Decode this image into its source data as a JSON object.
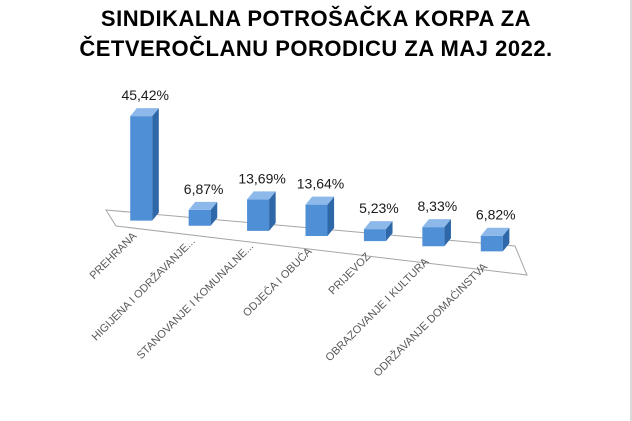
{
  "title_lines": [
    "SINDIKALNA POTROŠAČKA KORPA ZA",
    "ČETVEROČLANU PORODICU ZA MAJ 2022."
  ],
  "colors": {
    "bar_front": "#4f8fd6",
    "bar_side": "#2f68a8",
    "bar_top": "#8db9ea",
    "floor": "#ffffff",
    "floor_edge": "#a6a6a6"
  },
  "chart_data": {
    "type": "bar",
    "title": "SINDIKALNA POTROŠAČKA KORPA ZA ČETVEROČLANU PORODICU ZA MAJ 2022.",
    "categories": [
      "PREHRANA",
      "HIGIJENA I ODRŽAVANJE...",
      "STANOVANJE I KOMUNALNE...",
      "ODJEĆA I OBUĆA",
      "PRIJEVOZ",
      "OBRAZOVANJE I KULTURA",
      "ODRŽAVANJE DOMAĆINSTVA"
    ],
    "values": [
      45.42,
      6.87,
      13.69,
      13.64,
      5.23,
      8.33,
      6.82
    ],
    "data_labels": [
      "45,42%",
      "6,87%",
      "13,69%",
      "13,64%",
      "5,23%",
      "8,33%",
      "6,82%"
    ],
    "grid": false,
    "legend": "none",
    "style": "3d-column"
  }
}
